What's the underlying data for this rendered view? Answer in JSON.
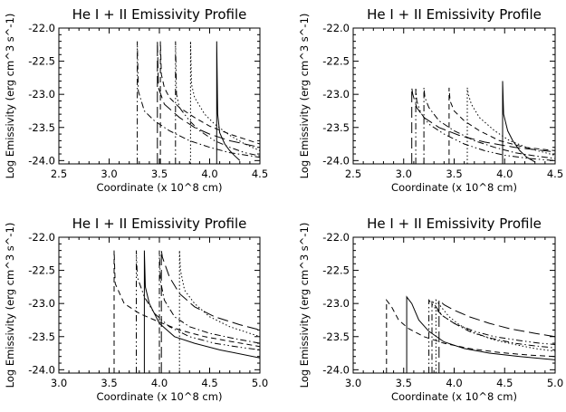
{
  "chart_data": [
    {
      "type": "line",
      "title": "He I + II Emissivity Profile",
      "xlabel": "Coordinate (x 10^8 cm)",
      "ylabel": "Log Emissivity (erg cm^3 s^-1)",
      "xlim": [
        2.5,
        4.5
      ],
      "ylim": [
        -24.05,
        -22.0
      ],
      "xticks": [
        "2.5",
        "3.0",
        "3.5",
        "4.0",
        "4.5"
      ],
      "yticks": [
        "-24.0",
        "-23.5",
        "-23.0",
        "-22.5",
        "-22.0"
      ],
      "grid": false,
      "series": [
        {
          "style": "solid",
          "x": [
            4.07,
            4.08,
            4.1,
            4.15,
            4.2,
            4.25,
            4.3
          ],
          "y": [
            -22.2,
            -23.3,
            -23.58,
            -23.75,
            -23.85,
            -23.93,
            -24.0
          ]
        },
        {
          "style": "dotted",
          "x": [
            3.81,
            3.82,
            3.85,
            3.95,
            4.05,
            4.2,
            4.35,
            4.5
          ],
          "y": [
            -22.2,
            -22.85,
            -23.05,
            -23.3,
            -23.45,
            -23.62,
            -23.75,
            -23.85
          ]
        },
        {
          "style": "dashed",
          "x": [
            3.51,
            3.52,
            3.55,
            3.6,
            3.7,
            3.85,
            4.0,
            4.2,
            4.5
          ],
          "y": [
            -22.2,
            -22.7,
            -22.9,
            -23.05,
            -23.2,
            -23.35,
            -23.48,
            -23.6,
            -23.75
          ]
        },
        {
          "style": "dashdot",
          "x": [
            3.28,
            3.29,
            3.35,
            3.45,
            3.6,
            3.8,
            4.0,
            4.2,
            4.5
          ],
          "y": [
            -22.2,
            -22.95,
            -23.25,
            -23.4,
            -23.55,
            -23.7,
            -23.8,
            -23.88,
            -23.95
          ]
        },
        {
          "style": "dashdotdot",
          "x": [
            3.66,
            3.67,
            3.7,
            3.8,
            3.9,
            4.05,
            4.2,
            4.35,
            4.5
          ],
          "y": [
            -22.2,
            -23.0,
            -23.2,
            -23.4,
            -23.55,
            -23.7,
            -23.8,
            -23.88,
            -23.93
          ]
        },
        {
          "style": "longdash",
          "x": [
            3.48,
            3.49,
            3.55,
            3.7,
            3.85,
            4.0,
            4.2,
            4.5
          ],
          "y": [
            -22.2,
            -22.9,
            -23.15,
            -23.35,
            -23.5,
            -23.6,
            -23.7,
            -23.8
          ]
        }
      ]
    },
    {
      "type": "line",
      "title": "He I + II Emissivity Profile",
      "xlabel": "Coordinate (x 10^8 cm)",
      "ylabel": "Log Emissivity (erg cm^3 s^-1)",
      "xlim": [
        2.5,
        4.5
      ],
      "ylim": [
        -24.05,
        -22.0
      ],
      "xticks": [
        "2.5",
        "3.0",
        "3.5",
        "4.0",
        "4.5"
      ],
      "yticks": [
        "-24.0",
        "-23.5",
        "-23.0",
        "-22.5",
        "-22.0"
      ],
      "grid": false,
      "series": [
        {
          "style": "solid",
          "x": [
            3.98,
            3.99,
            4.03,
            4.08,
            4.15,
            4.22,
            4.3
          ],
          "y": [
            -22.8,
            -23.3,
            -23.55,
            -23.7,
            -23.85,
            -23.95,
            -24.02
          ]
        },
        {
          "style": "dotted",
          "x": [
            3.63,
            3.64,
            3.67,
            3.75,
            3.9,
            4.05,
            4.25,
            4.5
          ],
          "y": [
            -22.9,
            -23.0,
            -23.15,
            -23.35,
            -23.55,
            -23.7,
            -23.82,
            -23.92
          ]
        },
        {
          "style": "dashed",
          "x": [
            3.45,
            3.46,
            3.5,
            3.6,
            3.75,
            3.95,
            4.2,
            4.5
          ],
          "y": [
            -22.9,
            -23.1,
            -23.25,
            -23.4,
            -23.55,
            -23.7,
            -23.8,
            -23.85
          ]
        },
        {
          "style": "dashdot",
          "x": [
            3.2,
            3.21,
            3.25,
            3.35,
            3.5,
            3.7,
            3.9,
            4.1,
            4.3,
            4.5
          ],
          "y": [
            -22.9,
            -23.05,
            -23.2,
            -23.4,
            -23.55,
            -23.7,
            -23.8,
            -23.88,
            -23.93,
            -23.97
          ]
        },
        {
          "style": "dashdotdot",
          "x": [
            3.12,
            3.13,
            3.17,
            3.25,
            3.4,
            3.6,
            3.8,
            4.0,
            4.25,
            4.5
          ],
          "y": [
            -22.9,
            -23.1,
            -23.28,
            -23.45,
            -23.6,
            -23.75,
            -23.85,
            -23.92,
            -23.97,
            -24.0
          ]
        },
        {
          "style": "longdash",
          "x": [
            3.08,
            3.09,
            3.13,
            3.2,
            3.35,
            3.55,
            3.8,
            4.1,
            4.5
          ],
          "y": [
            -22.9,
            -23.0,
            -23.2,
            -23.35,
            -23.5,
            -23.62,
            -23.72,
            -23.8,
            -23.87
          ]
        }
      ]
    },
    {
      "type": "line",
      "title": "He I + II Emissivity Profile",
      "xlabel": "Coordinate (x 10^8 cm)",
      "ylabel": "Log Emissivity (erg cm^3 s^-1)",
      "xlim": [
        3.0,
        5.0
      ],
      "ylim": [
        -24.05,
        -22.0
      ],
      "xticks": [
        "3.0",
        "3.5",
        "4.0",
        "4.5",
        "5.0"
      ],
      "yticks": [
        "-24.0",
        "-23.5",
        "-23.0",
        "-22.5",
        "-22.0"
      ],
      "grid": false,
      "series": [
        {
          "style": "solid",
          "x": [
            3.85,
            3.86,
            3.9,
            4.0,
            4.15,
            4.35,
            4.6,
            5.0
          ],
          "y": [
            -22.2,
            -22.75,
            -23.0,
            -23.3,
            -23.5,
            -23.6,
            -23.7,
            -23.82
          ]
        },
        {
          "style": "dotted",
          "x": [
            4.2,
            4.21,
            4.25,
            4.35,
            4.5,
            4.7,
            5.0
          ],
          "y": [
            -22.2,
            -22.5,
            -22.8,
            -23.0,
            -23.2,
            -23.35,
            -23.5
          ]
        },
        {
          "style": "dashed",
          "x": [
            3.55,
            3.56,
            3.65,
            3.8,
            4.0,
            4.2,
            4.45,
            4.7,
            5.0
          ],
          "y": [
            -22.2,
            -22.7,
            -23.0,
            -23.15,
            -23.28,
            -23.4,
            -23.5,
            -23.57,
            -23.65
          ]
        },
        {
          "style": "dashdot",
          "x": [
            4.0,
            4.01,
            4.05,
            4.15,
            4.3,
            4.5,
            4.75,
            5.0
          ],
          "y": [
            -22.2,
            -22.65,
            -22.95,
            -23.2,
            -23.35,
            -23.45,
            -23.53,
            -23.6
          ]
        },
        {
          "style": "dashdotdot",
          "x": [
            3.77,
            3.78,
            3.85,
            3.95,
            4.1,
            4.3,
            4.55,
            4.8,
            5.0
          ],
          "y": [
            -22.2,
            -22.6,
            -22.9,
            -23.15,
            -23.35,
            -23.5,
            -23.6,
            -23.66,
            -23.7
          ]
        },
        {
          "style": "longdash",
          "x": [
            4.02,
            4.03,
            4.1,
            4.2,
            4.35,
            4.55,
            4.8,
            5.0
          ],
          "y": [
            -22.2,
            -22.3,
            -22.6,
            -22.85,
            -23.05,
            -23.2,
            -23.32,
            -23.4
          ]
        }
      ]
    },
    {
      "type": "line",
      "title": "He I + II Emissivity Profile",
      "xlabel": "Coordinate (x 10^8 cm)",
      "ylabel": "Log Emissivity (erg cm^3 s^-1)",
      "xlim": [
        3.0,
        5.0
      ],
      "ylim": [
        -24.05,
        -22.0
      ],
      "xticks": [
        "3.0",
        "3.5",
        "4.0",
        "4.5",
        "5.0"
      ],
      "yticks": [
        "-24.0",
        "-23.5",
        "-23.0",
        "-22.5",
        "-22.0"
      ],
      "grid": false,
      "series": [
        {
          "style": "solid",
          "x": [
            3.53,
            3.58,
            3.65,
            3.75,
            3.9,
            4.1,
            4.35,
            4.65,
            5.0
          ],
          "y": [
            -22.9,
            -23.0,
            -23.25,
            -23.42,
            -23.58,
            -23.68,
            -23.75,
            -23.8,
            -23.85
          ]
        },
        {
          "style": "dotted",
          "x": [
            3.82,
            3.87,
            3.95,
            4.05,
            4.2,
            4.4,
            4.6,
            4.8,
            5.0
          ],
          "y": [
            -22.95,
            -23.05,
            -23.2,
            -23.32,
            -23.45,
            -23.55,
            -23.62,
            -23.68,
            -23.72
          ]
        },
        {
          "style": "dashed",
          "x": [
            3.33,
            3.38,
            3.45,
            3.55,
            3.7,
            3.9,
            4.15,
            4.45,
            4.75,
            5.0
          ],
          "y": [
            -22.95,
            -23.05,
            -23.25,
            -23.38,
            -23.5,
            -23.6,
            -23.68,
            -23.74,
            -23.78,
            -23.8
          ]
        },
        {
          "style": "dashdot",
          "x": [
            3.78,
            3.82,
            3.88,
            4.0,
            4.15,
            4.35,
            4.6,
            4.8,
            5.0
          ],
          "y": [
            -22.95,
            -23.05,
            -23.18,
            -23.3,
            -23.42,
            -23.52,
            -23.6,
            -23.64,
            -23.67
          ]
        },
        {
          "style": "dashdotdot",
          "x": [
            3.75,
            3.8,
            3.88,
            4.0,
            4.2,
            4.4,
            4.65,
            4.85,
            5.0
          ],
          "y": [
            -22.95,
            -23.05,
            -23.18,
            -23.3,
            -23.42,
            -23.5,
            -23.56,
            -23.6,
            -23.62
          ]
        },
        {
          "style": "longdash",
          "x": [
            3.85,
            3.9,
            4.0,
            4.15,
            4.35,
            4.55,
            4.8,
            5.0
          ],
          "y": [
            -22.95,
            -23.02,
            -23.1,
            -23.2,
            -23.3,
            -23.38,
            -23.45,
            -23.5
          ]
        }
      ]
    }
  ]
}
